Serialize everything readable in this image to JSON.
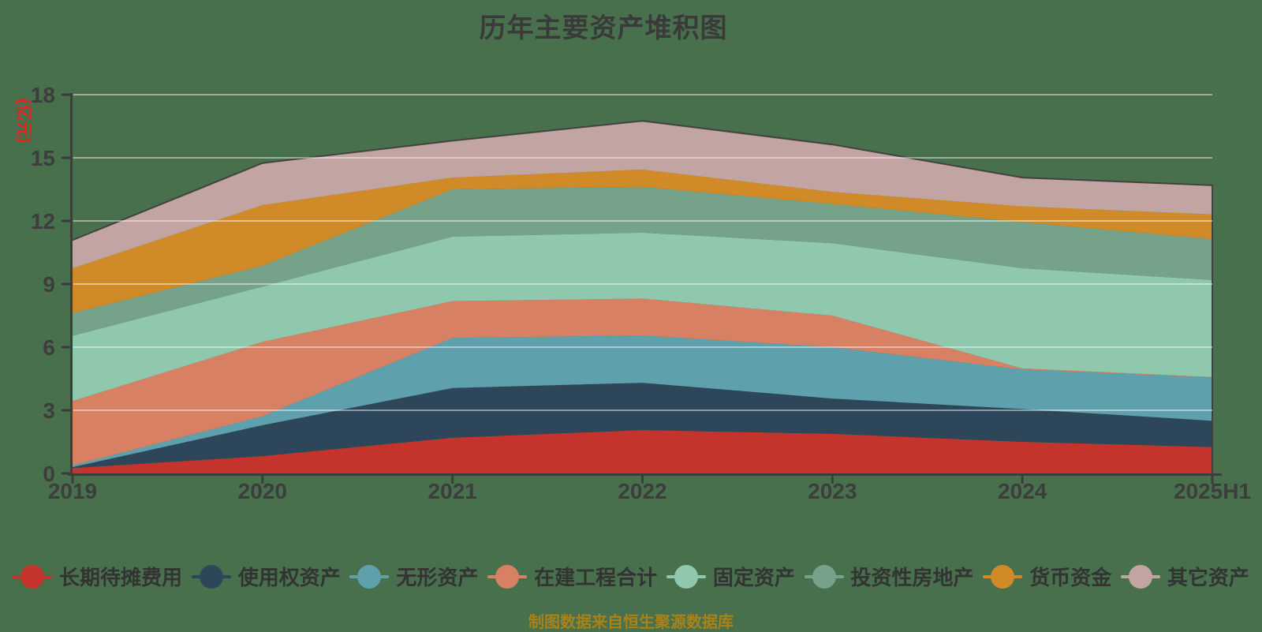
{
  "title": "历年主要资产堆积图",
  "source_note": "制图数据来自恒生聚源数据库",
  "colors": {
    "background": "#48704d",
    "title_text": "#3a3a3a",
    "axis": "#3d3d3d",
    "unit_text": "#e8221a",
    "source_note_text": "#aa8217"
  },
  "chart_data": {
    "type": "area",
    "stacked": true,
    "title": "历年主要资产堆积图",
    "unit": "(亿元)",
    "xlabel": "",
    "ylabel": "(亿元)",
    "categories": [
      "2019",
      "2020",
      "2021",
      "2022",
      "2023",
      "2024",
      "2025H1"
    ],
    "yticks": [
      0,
      3,
      6,
      9,
      12,
      15,
      18
    ],
    "ylim": [
      0,
      18
    ],
    "grid": true,
    "legend_position": "bottom",
    "gridline_color": "rgba(255,255,255,0.45)",
    "axis_color": "#3d3d3d",
    "outline_color": "#3c3c3c",
    "series": [
      {
        "id": "long-term-deferred-expenses",
        "name": "长期待摊费用",
        "color": "#c5342c",
        "values": [
          0.25,
          0.82,
          1.69,
          2.06,
          1.88,
          1.5,
          1.25
        ]
      },
      {
        "id": "right-of-use-assets",
        "name": "使用权资产",
        "color": "#2e4659",
        "values": [
          0.05,
          1.47,
          2.37,
          2.25,
          1.68,
          1.56,
          1.25
        ]
      },
      {
        "id": "intangible-assets",
        "name": "无形资产",
        "color": "#5fa0ad",
        "values": [
          0.08,
          0.43,
          2.38,
          2.25,
          2.44,
          1.88,
          2.06
        ]
      },
      {
        "id": "construction-in-progress",
        "name": "在建工程合计",
        "color": "#d88063",
        "values": [
          3.06,
          3.53,
          1.75,
          1.75,
          1.5,
          0.05,
          0.02
        ]
      },
      {
        "id": "fixed-assets",
        "name": "固定资产",
        "color": "#8fc8ad",
        "values": [
          3.1,
          2.63,
          3.06,
          3.13,
          3.44,
          4.76,
          4.61
        ]
      },
      {
        "id": "investment-property",
        "name": "投资性房地产",
        "color": "#75a289",
        "values": [
          1.08,
          0.99,
          2.25,
          2.18,
          1.87,
          2.19,
          1.94
        ]
      },
      {
        "id": "monetary-funds",
        "name": "货币资金",
        "color": "#d18a28",
        "values": [
          2.13,
          2.88,
          0.56,
          0.82,
          0.57,
          0.75,
          1.18
        ]
      },
      {
        "id": "other-assets",
        "name": "其它资产",
        "color": "#c2a4a2",
        "values": [
          1.34,
          2.0,
          1.75,
          2.31,
          2.25,
          1.37,
          1.38
        ]
      }
    ],
    "stack_totals": [
      11.09,
      14.75,
      15.81,
      16.75,
      15.63,
      14.06,
      13.69
    ]
  }
}
